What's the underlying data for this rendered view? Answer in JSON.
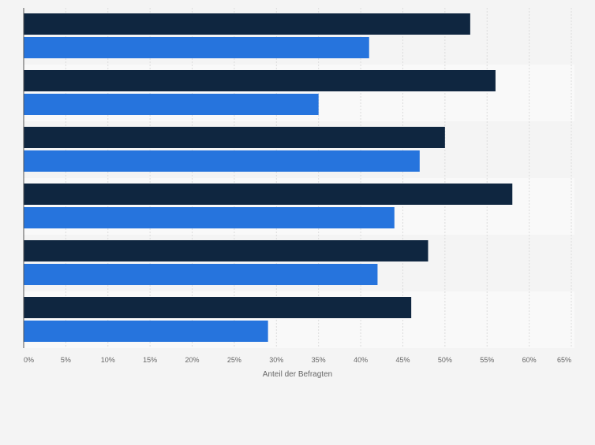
{
  "chart_data": {
    "type": "bar",
    "orientation": "horizontal",
    "categories": [
      "",
      "",
      "",
      "",
      "",
      ""
    ],
    "series": [
      {
        "values": [
          53,
          56,
          50,
          58,
          48,
          46
        ]
      },
      {
        "values": [
          41,
          35,
          47,
          44,
          42,
          29
        ]
      }
    ],
    "xlabel": "Anteil der Befragten",
    "ylabel": "",
    "xlim": [
      0,
      65
    ],
    "x_ticks": [
      0,
      5,
      10,
      15,
      20,
      25,
      30,
      35,
      40,
      45,
      50,
      55,
      60,
      65
    ],
    "x_tick_labels": [
      "0%",
      "5%",
      "10%",
      "15%",
      "20%",
      "25%",
      "30%",
      "35%",
      "40%",
      "45%",
      "50%",
      "55%",
      "60%",
      "65%"
    ],
    "grid": "vertical",
    "legend": "none",
    "colors": {
      "series": [
        "#0f2640",
        "#2674dd"
      ],
      "background": "#f4f4f4",
      "band_alternate": "#f9f9f9",
      "gridline": "#dcdcdc",
      "axis": "#555555",
      "tick_text": "#666666"
    }
  }
}
